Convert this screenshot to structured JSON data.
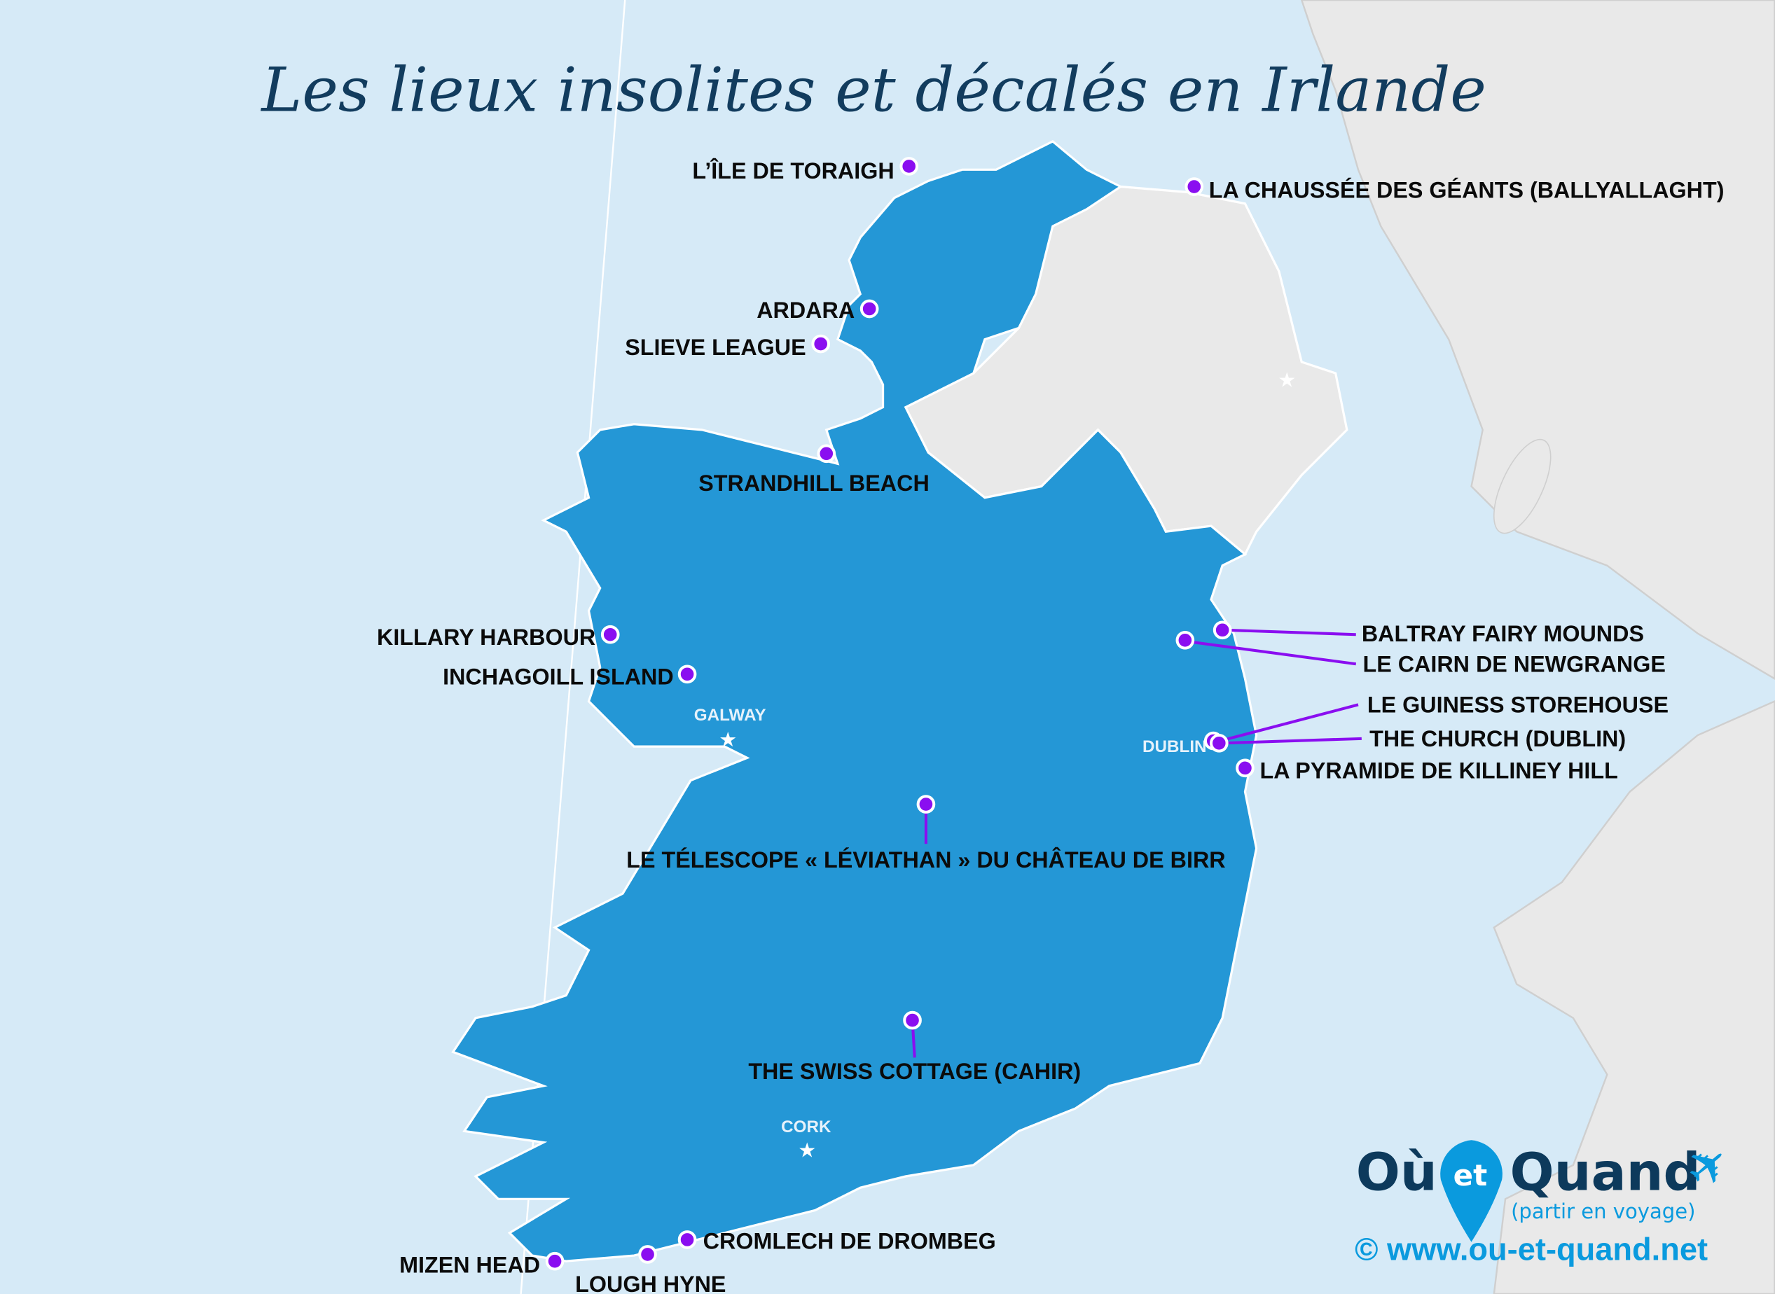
{
  "title": "Les lieux insolites et décalés en Irlande",
  "colors": {
    "sea": "#d6eaf7",
    "ireland": "#2497d6",
    "other_land": "#e9e9e9",
    "pin": "#8a0ef0",
    "title": "#123c5e",
    "logo_dark": "#0d3a5c",
    "logo_blue": "#0a9ade"
  },
  "places": [
    {
      "name": "L’ÎLE DE TORAIGH"
    },
    {
      "name": "LA CHAUSSÉE DES GÉANTS (BALLYALLAGHT)"
    },
    {
      "name": "ARDARA"
    },
    {
      "name": "SLIEVE LEAGUE"
    },
    {
      "name": "STRANDHILL BEACH"
    },
    {
      "name": "KILLARY HARBOUR"
    },
    {
      "name": "INCHAGOILL ISLAND"
    },
    {
      "name": "BALTRAY FAIRY MOUNDS"
    },
    {
      "name": "LE CAIRN DE NEWGRANGE"
    },
    {
      "name": "LE GUINESS STOREHOUSE"
    },
    {
      "name": "THE CHURCH (DUBLIN)"
    },
    {
      "name": "LA PYRAMIDE DE KILLINEY HILL"
    },
    {
      "name": "LE TÉLESCOPE « LÉVIATHAN » DU CHÂTEAU DE BIRR"
    },
    {
      "name": "THE SWISS COTTAGE (CAHIR)"
    },
    {
      "name": "CROMLECH DE DROMBEG"
    },
    {
      "name": "MIZEN HEAD"
    },
    {
      "name": "LOUGH HYNE"
    }
  ],
  "cities": {
    "galway": "GALWAY",
    "dublin": "DUBLIN",
    "cork": "CORK"
  },
  "logo": {
    "ou": "Où",
    "et": "et",
    "quand": "Quand",
    "tagline": "(partir en voyage)",
    "url": "© www.ou-et-quand.net",
    "icon": "airplane-icon"
  }
}
